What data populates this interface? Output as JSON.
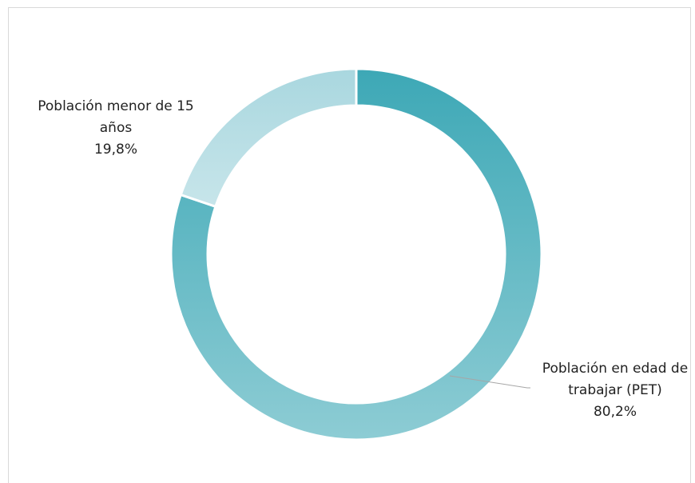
{
  "chart_data": {
    "type": "donut",
    "categories": [
      "Población en edad de trabajar (PET)",
      "Población menor de 15 años"
    ],
    "values": [
      80.2,
      19.8
    ],
    "value_labels": [
      "80,2%",
      "19,8%"
    ],
    "colors": [
      "#4fb0bd",
      "#a9d7df"
    ]
  }
}
